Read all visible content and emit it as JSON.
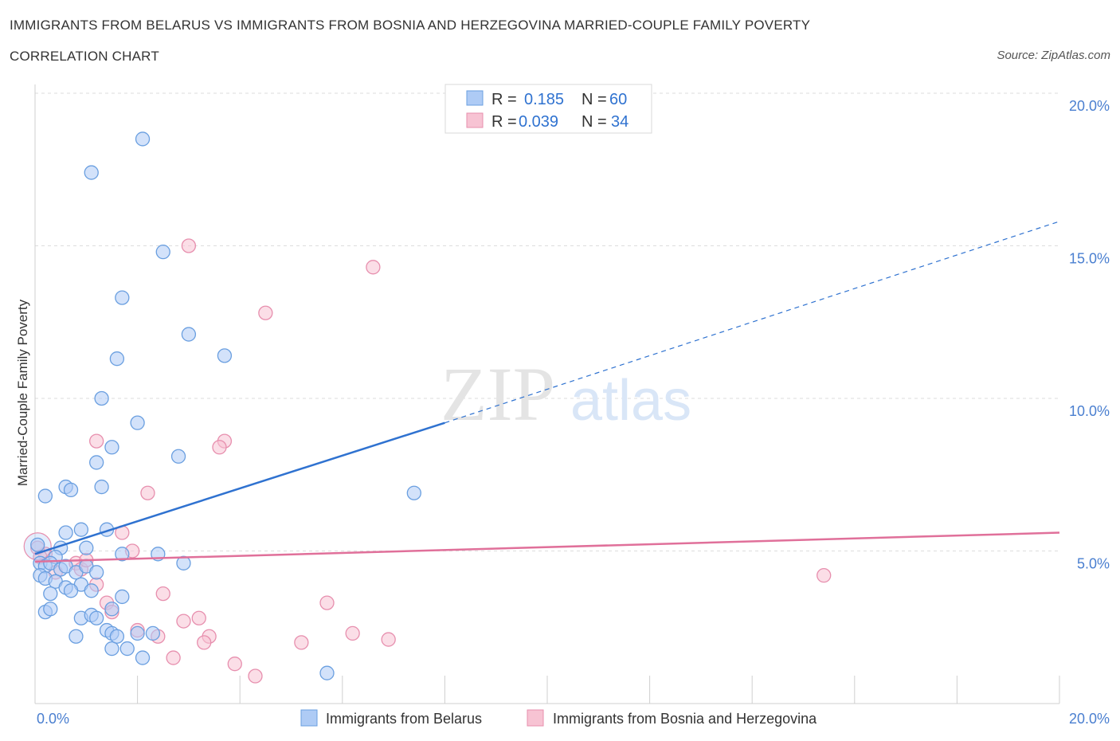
{
  "header": {
    "title_line1": "IMMIGRANTS FROM BELARUS VS IMMIGRANTS FROM BOSNIA AND HERZEGOVINA MARRIED-COUPLE FAMILY POVERTY",
    "title_line2": "CORRELATION CHART",
    "source": "Source: ZipAtlas.com"
  },
  "colors": {
    "blue_fill": "#aecbf5",
    "blue_stroke": "#6a9fe0",
    "blue_line": "#2f72d0",
    "pink_fill": "#f7c3d3",
    "pink_stroke": "#e78fae",
    "pink_line": "#e0709a",
    "tick_text": "#4a7fd0",
    "grid": "#dddddd"
  },
  "chart_data": {
    "type": "scatter",
    "title": "Immigrants from Belarus vs Immigrants from Bosnia and Herzegovina Married-Couple Family Poverty Correlation Chart",
    "xlabel": "",
    "ylabel": "Married-Couple Family Poverty",
    "xlim": [
      0,
      20
    ],
    "ylim": [
      0,
      20
    ],
    "x_tick_labels": [
      "0.0%",
      "20.0%"
    ],
    "y_ticks": [
      5,
      10,
      15,
      20
    ],
    "y_tick_labels": [
      "5.0%",
      "10.0%",
      "15.0%",
      "20.0%"
    ],
    "grid": true,
    "legend_position": "top-center",
    "watermark": {
      "zip": "ZIP",
      "atlas": "atlas"
    },
    "legend": {
      "rows": [
        {
          "r_label": "R =",
          "r_value": "0.185",
          "n_label": "N =",
          "n_value": "60"
        },
        {
          "r_label": "R =",
          "r_value": "0.039",
          "n_label": "N =",
          "n_value": "34"
        }
      ]
    },
    "series": [
      {
        "name": "Immigrants from Belarus",
        "color": "blue",
        "r": 0.185,
        "n": 60,
        "trend": {
          "x0": 0,
          "y0": 4.9,
          "x1": 8,
          "y1": 9.2,
          "dash_to_x": 20,
          "dash_to_y": 15.8
        },
        "points": [
          [
            2.1,
            18.5
          ],
          [
            1.1,
            17.4
          ],
          [
            2.5,
            14.8
          ],
          [
            1.7,
            13.3
          ],
          [
            3.0,
            12.1
          ],
          [
            1.6,
            11.3
          ],
          [
            3.7,
            11.4
          ],
          [
            1.3,
            10.0
          ],
          [
            2.0,
            9.2
          ],
          [
            1.5,
            8.4
          ],
          [
            2.8,
            8.1
          ],
          [
            1.2,
            7.9
          ],
          [
            0.6,
            7.1
          ],
          [
            0.7,
            7.0
          ],
          [
            1.3,
            7.1
          ],
          [
            0.2,
            6.8
          ],
          [
            7.4,
            6.9
          ],
          [
            0.6,
            5.6
          ],
          [
            0.9,
            5.7
          ],
          [
            1.4,
            5.7
          ],
          [
            0.5,
            5.1
          ],
          [
            1.0,
            5.1
          ],
          [
            1.7,
            4.9
          ],
          [
            2.4,
            4.9
          ],
          [
            0.4,
            4.8
          ],
          [
            0.1,
            4.6
          ],
          [
            0.2,
            4.5
          ],
          [
            0.3,
            4.6
          ],
          [
            0.5,
            4.4
          ],
          [
            0.6,
            4.5
          ],
          [
            0.8,
            4.3
          ],
          [
            1.0,
            4.5
          ],
          [
            1.2,
            4.3
          ],
          [
            0.1,
            4.2
          ],
          [
            0.2,
            4.1
          ],
          [
            0.4,
            4.0
          ],
          [
            0.6,
            3.8
          ],
          [
            0.9,
            3.9
          ],
          [
            1.1,
            3.7
          ],
          [
            2.9,
            4.6
          ],
          [
            0.3,
            3.6
          ],
          [
            0.7,
            3.7
          ],
          [
            1.7,
            3.5
          ],
          [
            1.5,
            3.1
          ],
          [
            0.2,
            3.0
          ],
          [
            0.3,
            3.1
          ],
          [
            0.9,
            2.8
          ],
          [
            1.1,
            2.9
          ],
          [
            1.2,
            2.8
          ],
          [
            1.4,
            2.4
          ],
          [
            1.5,
            2.3
          ],
          [
            2.0,
            2.3
          ],
          [
            2.3,
            2.3
          ],
          [
            0.8,
            2.2
          ],
          [
            1.5,
            1.8
          ],
          [
            1.8,
            1.8
          ],
          [
            2.1,
            1.5
          ],
          [
            5.7,
            1.0
          ],
          [
            0.05,
            5.2
          ],
          [
            1.6,
            2.2
          ]
        ]
      },
      {
        "name": "Immigrants from Bosnia and Herzegovina",
        "color": "pink",
        "r": 0.039,
        "n": 34,
        "trend": {
          "x0": 0,
          "y0": 4.65,
          "x1": 20,
          "y1": 5.6
        },
        "points": [
          [
            3.0,
            15.0
          ],
          [
            6.6,
            14.3
          ],
          [
            4.5,
            12.8
          ],
          [
            1.2,
            8.6
          ],
          [
            3.7,
            8.6
          ],
          [
            3.6,
            8.4
          ],
          [
            2.2,
            6.9
          ],
          [
            1.7,
            5.6
          ],
          [
            1.9,
            5.0
          ],
          [
            0.2,
            4.9
          ],
          [
            0.8,
            4.6
          ],
          [
            0.9,
            4.4
          ],
          [
            1.0,
            4.7
          ],
          [
            1.2,
            3.9
          ],
          [
            2.5,
            3.6
          ],
          [
            1.4,
            3.3
          ],
          [
            1.5,
            3.0
          ],
          [
            3.2,
            2.8
          ],
          [
            2.9,
            2.7
          ],
          [
            5.7,
            3.3
          ],
          [
            6.2,
            2.3
          ],
          [
            6.9,
            2.1
          ],
          [
            2.0,
            2.4
          ],
          [
            2.4,
            2.2
          ],
          [
            3.4,
            2.2
          ],
          [
            3.3,
            2.0
          ],
          [
            5.2,
            2.0
          ],
          [
            2.7,
            1.5
          ],
          [
            3.9,
            1.3
          ],
          [
            4.3,
            0.9
          ],
          [
            15.4,
            4.2
          ],
          [
            0.05,
            5.1
          ],
          [
            0.1,
            4.8
          ],
          [
            0.4,
            4.3
          ]
        ]
      }
    ]
  }
}
